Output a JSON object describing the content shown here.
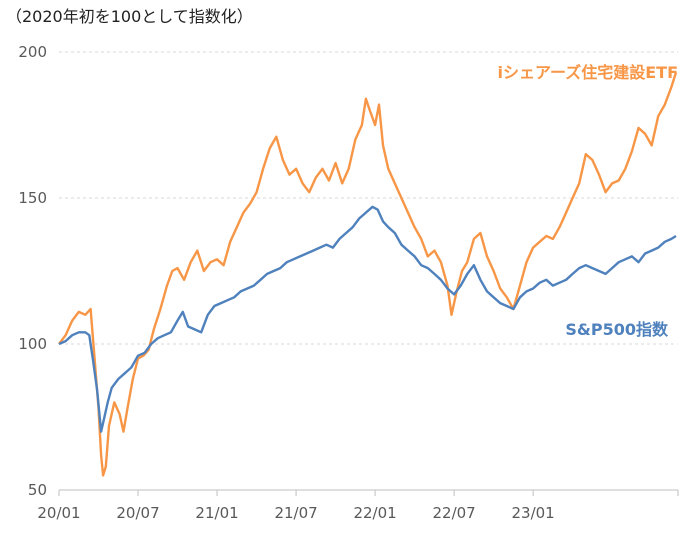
{
  "chart_data": {
    "type": "line",
    "title": "（2020年初を100として指数化）",
    "xlabel": "",
    "ylabel": "",
    "ylim": [
      50,
      200
    ],
    "yticks": [
      50,
      100,
      150,
      200
    ],
    "xlim_months": [
      0,
      47
    ],
    "xticks": [
      {
        "label": "20/01",
        "month": 0
      },
      {
        "label": "20/07",
        "month": 6
      },
      {
        "label": "21/01",
        "month": 12
      },
      {
        "label": "21/07",
        "month": 18
      },
      {
        "label": "22/01",
        "month": 24
      },
      {
        "label": "22/07",
        "month": 30
      },
      {
        "label": "23/01",
        "month": 36
      }
    ],
    "grid": true,
    "series": [
      {
        "name": "iシェアーズ住宅建設ETF",
        "color": "#F79646",
        "legend_position": "top-right",
        "points": [
          [
            0,
            100
          ],
          [
            0.5,
            103
          ],
          [
            1,
            108
          ],
          [
            1.5,
            111
          ],
          [
            2,
            110
          ],
          [
            2.4,
            112
          ],
          [
            2.7,
            95
          ],
          [
            3.0,
            78
          ],
          [
            3.2,
            62
          ],
          [
            3.35,
            55
          ],
          [
            3.55,
            58
          ],
          [
            3.8,
            72
          ],
          [
            4.2,
            80
          ],
          [
            4.6,
            76
          ],
          [
            4.9,
            70
          ],
          [
            5.2,
            78
          ],
          [
            5.6,
            88
          ],
          [
            6.0,
            95
          ],
          [
            6.4,
            96
          ],
          [
            6.8,
            98
          ],
          [
            7.2,
            105
          ],
          [
            7.7,
            112
          ],
          [
            8.2,
            120
          ],
          [
            8.6,
            125
          ],
          [
            9.0,
            126
          ],
          [
            9.5,
            122
          ],
          [
            10.0,
            128
          ],
          [
            10.5,
            132
          ],
          [
            11.0,
            125
          ],
          [
            11.5,
            128
          ],
          [
            12.0,
            129
          ],
          [
            12.5,
            127
          ],
          [
            13.0,
            135
          ],
          [
            13.5,
            140
          ],
          [
            14.0,
            145
          ],
          [
            14.5,
            148
          ],
          [
            15.0,
            152
          ],
          [
            15.5,
            160
          ],
          [
            16.0,
            167
          ],
          [
            16.5,
            171
          ],
          [
            17.0,
            163
          ],
          [
            17.5,
            158
          ],
          [
            18.0,
            160
          ],
          [
            18.5,
            155
          ],
          [
            19.0,
            152
          ],
          [
            19.5,
            157
          ],
          [
            20.0,
            160
          ],
          [
            20.5,
            156
          ],
          [
            21.0,
            162
          ],
          [
            21.5,
            155
          ],
          [
            22.0,
            160
          ],
          [
            22.5,
            170
          ],
          [
            23.0,
            175
          ],
          [
            23.3,
            184
          ],
          [
            23.6,
            180
          ],
          [
            24.0,
            175
          ],
          [
            24.3,
            182
          ],
          [
            24.6,
            168
          ],
          [
            25.0,
            160
          ],
          [
            25.5,
            155
          ],
          [
            26.0,
            150
          ],
          [
            26.5,
            145
          ],
          [
            27.0,
            140
          ],
          [
            27.5,
            136
          ],
          [
            28.0,
            130
          ],
          [
            28.5,
            132
          ],
          [
            29.0,
            128
          ],
          [
            29.5,
            120
          ],
          [
            29.8,
            110
          ],
          [
            30.2,
            118
          ],
          [
            30.6,
            125
          ],
          [
            31.0,
            128
          ],
          [
            31.5,
            136
          ],
          [
            32.0,
            138
          ],
          [
            32.5,
            130
          ],
          [
            33.0,
            125
          ],
          [
            33.5,
            119
          ],
          [
            34.0,
            116
          ],
          [
            34.5,
            112
          ],
          [
            35.0,
            120
          ],
          [
            35.5,
            128
          ],
          [
            36.0,
            133
          ],
          [
            36.5,
            135
          ],
          [
            37.0,
            137
          ],
          [
            37.5,
            136
          ],
          [
            38.0,
            140
          ],
          [
            38.5,
            145
          ],
          [
            39.0,
            150
          ],
          [
            39.5,
            155
          ],
          [
            40.0,
            165
          ],
          [
            40.5,
            163
          ],
          [
            41.0,
            158
          ],
          [
            41.5,
            152
          ],
          [
            42.0,
            155
          ],
          [
            42.5,
            156
          ],
          [
            43.0,
            160
          ],
          [
            43.5,
            166
          ],
          [
            44.0,
            174
          ],
          [
            44.5,
            172
          ],
          [
            45.0,
            168
          ],
          [
            45.5,
            178
          ],
          [
            46.0,
            182
          ],
          [
            46.5,
            188
          ],
          [
            46.85,
            193
          ]
        ]
      },
      {
        "name": "S&P500指数",
        "color": "#4F81BD",
        "legend_position": "right",
        "points": [
          [
            0,
            100
          ],
          [
            0.5,
            101
          ],
          [
            1,
            103
          ],
          [
            1.5,
            104
          ],
          [
            2,
            104
          ],
          [
            2.3,
            103
          ],
          [
            2.6,
            94
          ],
          [
            2.9,
            84
          ],
          [
            3.2,
            70
          ],
          [
            3.4,
            74
          ],
          [
            3.7,
            80
          ],
          [
            4.0,
            85
          ],
          [
            4.5,
            88
          ],
          [
            5.0,
            90
          ],
          [
            5.5,
            92
          ],
          [
            6.0,
            96
          ],
          [
            6.5,
            97
          ],
          [
            7.0,
            100
          ],
          [
            7.5,
            102
          ],
          [
            8.0,
            103
          ],
          [
            8.5,
            104
          ],
          [
            9.0,
            108
          ],
          [
            9.4,
            111
          ],
          [
            9.8,
            106
          ],
          [
            10.3,
            105
          ],
          [
            10.8,
            104
          ],
          [
            11.3,
            110
          ],
          [
            11.8,
            113
          ],
          [
            12.3,
            114
          ],
          [
            12.8,
            115
          ],
          [
            13.3,
            116
          ],
          [
            13.8,
            118
          ],
          [
            14.3,
            119
          ],
          [
            14.8,
            120
          ],
          [
            15.3,
            122
          ],
          [
            15.8,
            124
          ],
          [
            16.3,
            125
          ],
          [
            16.8,
            126
          ],
          [
            17.3,
            128
          ],
          [
            17.8,
            129
          ],
          [
            18.3,
            130
          ],
          [
            18.8,
            131
          ],
          [
            19.3,
            132
          ],
          [
            19.8,
            133
          ],
          [
            20.3,
            134
          ],
          [
            20.8,
            133
          ],
          [
            21.3,
            136
          ],
          [
            21.8,
            138
          ],
          [
            22.3,
            140
          ],
          [
            22.8,
            143
          ],
          [
            23.3,
            145
          ],
          [
            23.8,
            147
          ],
          [
            24.2,
            146
          ],
          [
            24.6,
            142
          ],
          [
            25.0,
            140
          ],
          [
            25.5,
            138
          ],
          [
            26.0,
            134
          ],
          [
            26.5,
            132
          ],
          [
            27.0,
            130
          ],
          [
            27.5,
            127
          ],
          [
            28.0,
            126
          ],
          [
            28.5,
            124
          ],
          [
            29.0,
            122
          ],
          [
            29.5,
            119
          ],
          [
            30.0,
            117
          ],
          [
            30.5,
            120
          ],
          [
            31.0,
            124
          ],
          [
            31.5,
            127
          ],
          [
            32.0,
            122
          ],
          [
            32.5,
            118
          ],
          [
            33.0,
            116
          ],
          [
            33.5,
            114
          ],
          [
            34.0,
            113
          ],
          [
            34.5,
            112
          ],
          [
            35.0,
            116
          ],
          [
            35.5,
            118
          ],
          [
            36.0,
            119
          ],
          [
            36.5,
            121
          ],
          [
            37.0,
            122
          ],
          [
            37.5,
            120
          ],
          [
            38.0,
            121
          ],
          [
            38.5,
            122
          ],
          [
            39.0,
            124
          ],
          [
            39.5,
            126
          ],
          [
            40.0,
            127
          ],
          [
            40.5,
            126
          ],
          [
            41.0,
            125
          ],
          [
            41.5,
            124
          ],
          [
            42.0,
            126
          ],
          [
            42.5,
            128
          ],
          [
            43.0,
            129
          ],
          [
            43.5,
            130
          ],
          [
            44.0,
            128
          ],
          [
            44.5,
            131
          ],
          [
            45.0,
            132
          ],
          [
            45.5,
            133
          ],
          [
            46.0,
            135
          ],
          [
            46.5,
            136
          ],
          [
            46.85,
            137
          ]
        ]
      }
    ]
  }
}
